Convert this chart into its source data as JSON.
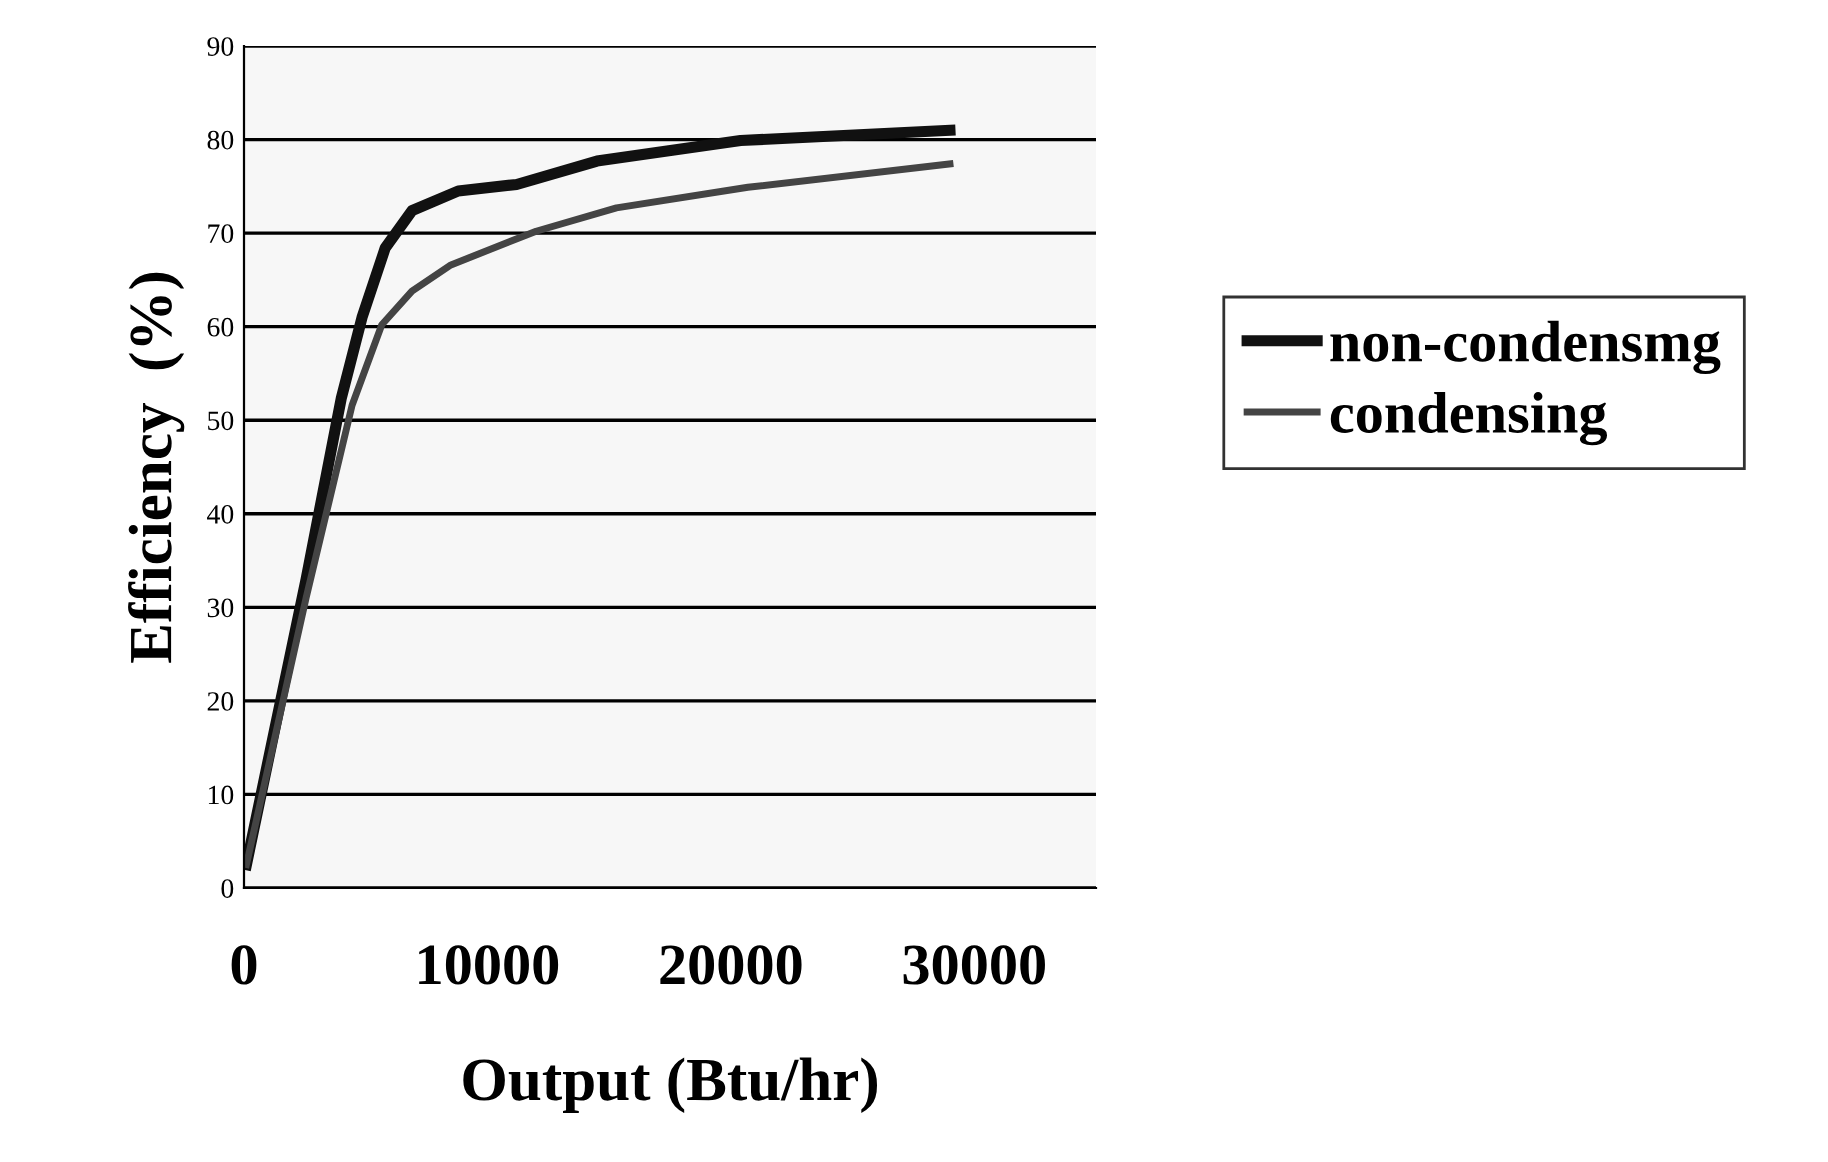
{
  "chart_data": {
    "type": "line",
    "xlabel": "Output (Btu/hr)",
    "ylabel": "Efficiency  (%)",
    "xlim": [
      0,
      35000
    ],
    "xticks": [
      0,
      10000,
      20000,
      30000
    ],
    "ylim": [
      0,
      90
    ],
    "yticks": [
      0,
      10,
      20,
      30,
      40,
      50,
      60,
      70,
      80,
      90
    ],
    "grid": "y",
    "legend": "right",
    "marker": "none",
    "line_style": "solid",
    "series": [
      {
        "name": "non-condensmg",
        "color": "#111111",
        "x": [
          100,
          2550,
          4000,
          4850,
          5800,
          6900,
          8800,
          11200,
          14500,
          20400,
          29000
        ],
        "values": [
          2.5,
          33,
          52.4,
          61,
          68.4,
          72.4,
          74.5,
          75.2,
          77.7,
          79.9,
          81
        ]
      },
      {
        "name": "condensing",
        "color": "#444444",
        "x": [
          100,
          2550,
          4440,
          5660,
          6900,
          8500,
          12000,
          15300,
          20700,
          29000
        ],
        "values": [
          2.5,
          31,
          51.6,
          60.2,
          63.8,
          66.6,
          70.2,
          72.7,
          74.9,
          77.4
        ]
      }
    ]
  }
}
